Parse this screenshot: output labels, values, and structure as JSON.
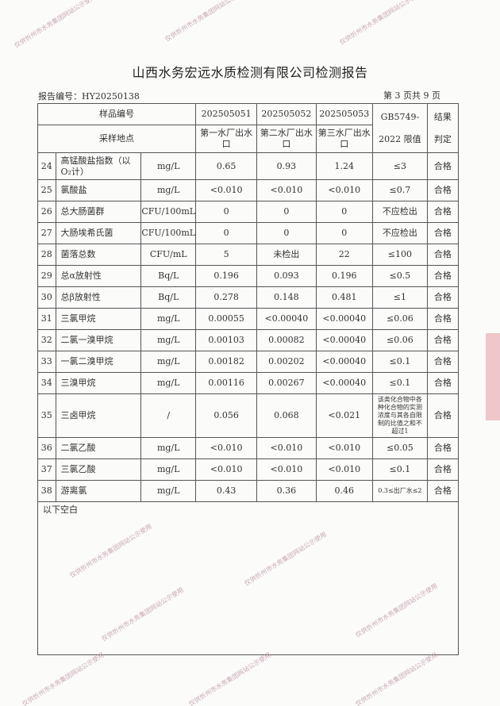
{
  "title": "山西水务宏远水质检测有限公司检测报告",
  "report_no": "报告编号：HY20250138",
  "page_info": "第 3 页共 9 页",
  "header": {
    "sample_no_label": "样品编号",
    "location_label": "采样地点",
    "samples": [
      "202505051",
      "202505052",
      "202505053"
    ],
    "locations": [
      "第一水厂出水口",
      "第二水厂出水口",
      "第三水厂出水口"
    ],
    "limit_label_1": "GB5749-",
    "limit_label_2": "2022 限值",
    "result_label_1": "结果",
    "result_label_2": "判定"
  },
  "rows": [
    {
      "no": "24",
      "name": "高锰酸盐指数（以O₂计）",
      "unit": "mg/L",
      "v1": "0.65",
      "v2": "0.93",
      "v3": "1.24",
      "limit": "≤3",
      "result": "合格"
    },
    {
      "no": "25",
      "name": "氯酸盐",
      "unit": "mg/L",
      "v1": "<0.010",
      "v2": "<0.010",
      "v3": "<0.010",
      "limit": "≤0.7",
      "result": "合格"
    },
    {
      "no": "26",
      "name": "总大肠菌群",
      "unit": "CFU/100mL",
      "v1": "0",
      "v2": "0",
      "v3": "0",
      "limit": "不应检出",
      "result": "合格"
    },
    {
      "no": "27",
      "name": "大肠埃希氏菌",
      "unit": "CFU/100mL",
      "v1": "0",
      "v2": "0",
      "v3": "0",
      "limit": "不应检出",
      "result": "合格"
    },
    {
      "no": "28",
      "name": "菌落总数",
      "unit": "CFU/mL",
      "v1": "5",
      "v2": "未检出",
      "v3": "22",
      "limit": "≤100",
      "result": "合格"
    },
    {
      "no": "29",
      "name": "总α放射性",
      "unit": "Bq/L",
      "v1": "0.196",
      "v2": "0.093",
      "v3": "0.196",
      "limit": "≤0.5",
      "result": "合格"
    },
    {
      "no": "30",
      "name": "总β放射性",
      "unit": "Bq/L",
      "v1": "0.278",
      "v2": "0.148",
      "v3": "0.481",
      "limit": "≤1",
      "result": "合格"
    },
    {
      "no": "31",
      "name": "三氯甲烷",
      "unit": "mg/L",
      "v1": "0.00055",
      "v2": "<0.00040",
      "v3": "<0.00040",
      "limit": "≤0.06",
      "result": "合格"
    },
    {
      "no": "32",
      "name": "二氯一溴甲烷",
      "unit": "mg/L",
      "v1": "0.00103",
      "v2": "0.00082",
      "v3": "<0.00040",
      "limit": "≤0.06",
      "result": "合格"
    },
    {
      "no": "33",
      "name": "一氯二溴甲烷",
      "unit": "mg/L",
      "v1": "0.00182",
      "v2": "0.00202",
      "v3": "<0.00040",
      "limit": "≤0.1",
      "result": "合格"
    },
    {
      "no": "34",
      "name": "三溴甲烷",
      "unit": "mg/L",
      "v1": "0.00116",
      "v2": "0.00267",
      "v3": "<0.00040",
      "limit": "≤0.1",
      "result": "合格"
    },
    {
      "no": "35",
      "name": "三卤甲烷",
      "unit": "/",
      "v1": "0.056",
      "v2": "0.068",
      "v3": "<0.021",
      "limit": "该类化合物中各种化合物的实测浓度与其各自限制的比值之和不超过1",
      "result": "合格"
    },
    {
      "no": "36",
      "name": "二氯乙酸",
      "unit": "mg/L",
      "v1": "<0.010",
      "v2": "<0.010",
      "v3": "<0.010",
      "limit": "≤0.05",
      "result": "合格"
    },
    {
      "no": "37",
      "name": "三氯乙酸",
      "unit": "mg/L",
      "v1": "<0.010",
      "v2": "<0.010",
      "v3": "<0.010",
      "limit": "≤0.1",
      "result": "合格"
    },
    {
      "no": "38",
      "name": "游离氯",
      "unit": "mg/L",
      "v1": "0.43",
      "v2": "0.36",
      "v3": "0.46",
      "limit": "0.3≤出厂水≤2",
      "result": "合格"
    }
  ],
  "footer_note": "以下空白",
  "watermark": "仅供忻州市水务集团网站公示使用"
}
